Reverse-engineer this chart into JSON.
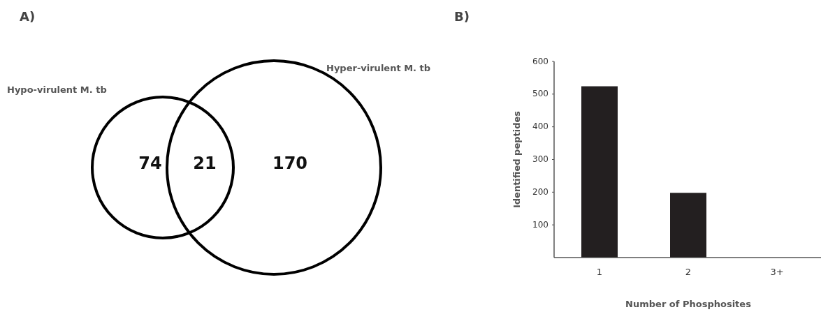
{
  "chart_data": [
    {
      "type": "other",
      "title": "A)",
      "categories": [
        "Hypo-virulent M. tb",
        null,
        "Hyper-virulent M. tb"
      ],
      "values": [
        74,
        21,
        170
      ],
      "data_labels": true
    },
    {
      "type": "bar",
      "title": "B)",
      "categories": [
        "1",
        "2",
        "3+"
      ],
      "values": [
        524,
        198,
        0
      ],
      "color": "#231f20",
      "xlabel": "Number of Phosphosites",
      "ylabel": "Identified peptides",
      "ylim": [
        0,
        600
      ],
      "yticks": [
        100,
        200,
        300,
        400,
        500,
        600
      ],
      "grid": false
    }
  ]
}
